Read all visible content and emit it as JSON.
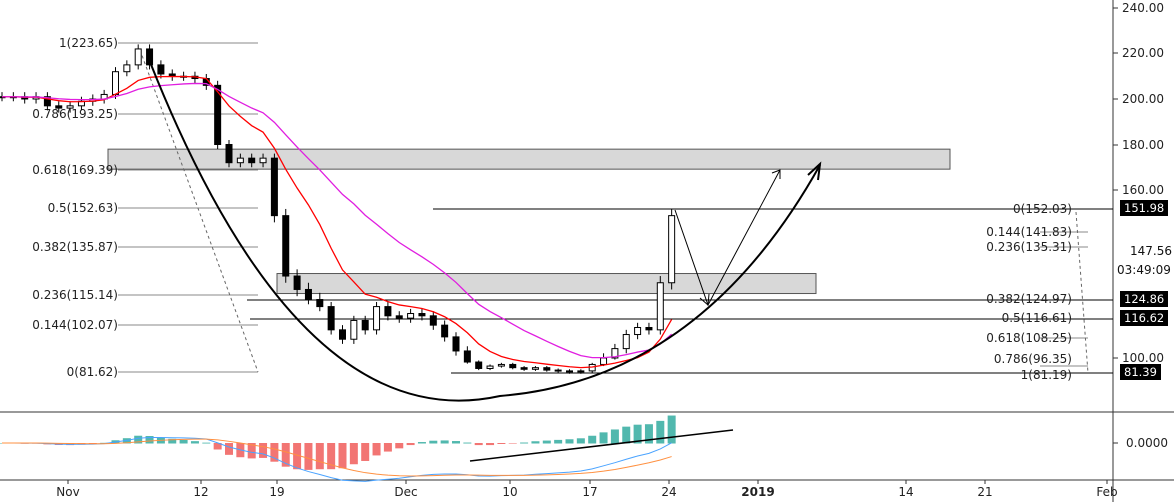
{
  "chart_data": {
    "type": "candlestick",
    "title": "",
    "x_ticks": [
      "Nov",
      "12",
      "19",
      "Dec",
      "10",
      "17",
      "24",
      "2019",
      "14",
      "21",
      "Feb"
    ],
    "y_ticks": [
      "240.00",
      "220.00",
      "200.00",
      "180.00",
      "160.00",
      "100.00"
    ],
    "start_date": "2018-10-26",
    "closes": [
      201,
      201,
      200,
      201,
      197,
      196,
      197,
      199,
      200,
      202,
      212,
      215,
      222,
      215,
      211,
      210,
      210,
      209,
      206,
      180,
      172,
      174,
      172,
      174,
      150,
      132,
      128,
      125,
      122,
      112,
      108,
      116,
      112,
      122,
      118,
      117,
      119,
      118,
      114,
      109,
      103,
      95,
      87,
      90,
      92,
      88,
      86,
      88,
      85,
      84,
      83,
      84,
      92,
      100,
      104,
      110,
      113,
      112,
      130,
      150
    ],
    "price_tags": [
      {
        "text": "151.98",
        "value": 151.98
      },
      {
        "text": "124.86",
        "value": 124.86
      },
      {
        "text": "116.62",
        "value": 116.62
      },
      {
        "text": "81.39",
        "value": 81.39
      }
    ],
    "extra_axis_labels": {
      "last": "147.56",
      "countdown": "03:49:09"
    },
    "fib_left": [
      {
        "label": "1(223.65)",
        "value": 223.65
      },
      {
        "label": "0.786(193.25)",
        "value": 193.25
      },
      {
        "label": "0.618(169.39)",
        "value": 169.39
      },
      {
        "label": "0.5(152.63)",
        "value": 152.63
      },
      {
        "label": "0.382(135.87)",
        "value": 135.87
      },
      {
        "label": "0.236(115.14)",
        "value": 115.14
      },
      {
        "label": "0.144(102.07)",
        "value": 102.07
      },
      {
        "label": "0(81.62)",
        "value": 81.62
      }
    ],
    "fib_right": [
      {
        "label": "0(152.03)",
        "value": 152.03
      },
      {
        "label": "0.144(141.83)",
        "value": 141.83
      },
      {
        "label": "0.236(135.31)",
        "value": 135.31
      },
      {
        "label": "0.382(124.97)",
        "value": 124.97
      },
      {
        "label": "0.5(116.61)",
        "value": 116.61
      },
      {
        "label": "0.618(108.25)",
        "value": 108.25
      },
      {
        "label": "0.786(96.35)",
        "value": 96.35
      },
      {
        "label": "1(81.19)",
        "value": 81.19
      }
    ],
    "zones": [
      [
        166,
        174
      ],
      [
        117,
        125
      ]
    ],
    "macd_axis_label": "0.0000",
    "colors": {
      "ma_fast": "#f00",
      "ma_slow": "#e01ee0",
      "macd": "#4aa3ff",
      "signal": "#ff9040",
      "hist_up": "#26a69a",
      "hist_down": "#ef5350",
      "zone": "#d8d8d8"
    }
  }
}
